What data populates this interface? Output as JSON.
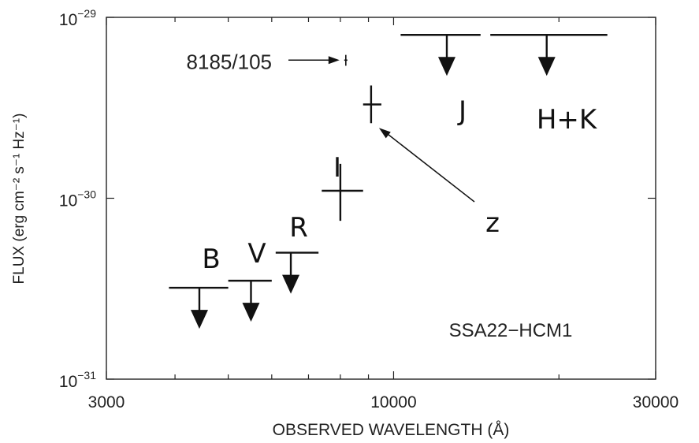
{
  "chart_data": {
    "type": "scatter",
    "title": "",
    "annotation": "SSA22−HCM1",
    "xlabel": "OBSERVED WAVELENGTH (Å)",
    "ylabel": "FLUX (erg cm⁻² s⁻¹ Hz⁻¹)",
    "xscale": "log",
    "yscale": "log",
    "xlim": [
      3000,
      30000
    ],
    "ylim": [
      1e-31,
      1e-29
    ],
    "xticklabels": [
      {
        "value": 3000,
        "label": "3000"
      },
      {
        "value": 10000,
        "label": "10000"
      },
      {
        "value": 30000,
        "label": "30000"
      }
    ],
    "yticklabels": [
      {
        "value": 1e-29,
        "base": "10",
        "exp": "−29"
      },
      {
        "value": 1e-30,
        "base": "10",
        "exp": "−30"
      },
      {
        "value": 1e-31,
        "base": "10",
        "exp": "−31"
      }
    ],
    "upper_limits": [
      {
        "label": "B",
        "x": 4430,
        "x_range": [
          3900,
          5000
        ],
        "y": 3.2e-31
      },
      {
        "label": "V",
        "x": 5500,
        "x_range": [
          5000,
          6000
        ],
        "y": 3.5e-31
      },
      {
        "label": "R",
        "x": 6500,
        "x_range": [
          6100,
          7300
        ],
        "y": 5e-31
      },
      {
        "label": "J",
        "x": 12500,
        "x_range": [
          10300,
          14400
        ],
        "y": 8e-30
      },
      {
        "label": "H+K",
        "x": 19000,
        "x_range": [
          15000,
          24500
        ],
        "y": 8e-30
      }
    ],
    "detections": [
      {
        "label": "I",
        "x": 8000,
        "x_err": [
          7400,
          8800
        ],
        "y": 1.1e-30,
        "y_err": [
          7.5e-31,
          1.55e-30
        ]
      },
      {
        "label": "z",
        "x": 9100,
        "x_err": [
          8800,
          9500
        ],
        "y": 3.3e-30,
        "y_err": [
          2.6e-30,
          4.2e-30
        ]
      },
      {
        "label": "8185/105",
        "x": 8185,
        "x_err": [
          8130,
          8240
        ],
        "y": 5.8e-30,
        "y_err": [
          5.4e-30,
          6.2e-30
        ]
      }
    ]
  }
}
